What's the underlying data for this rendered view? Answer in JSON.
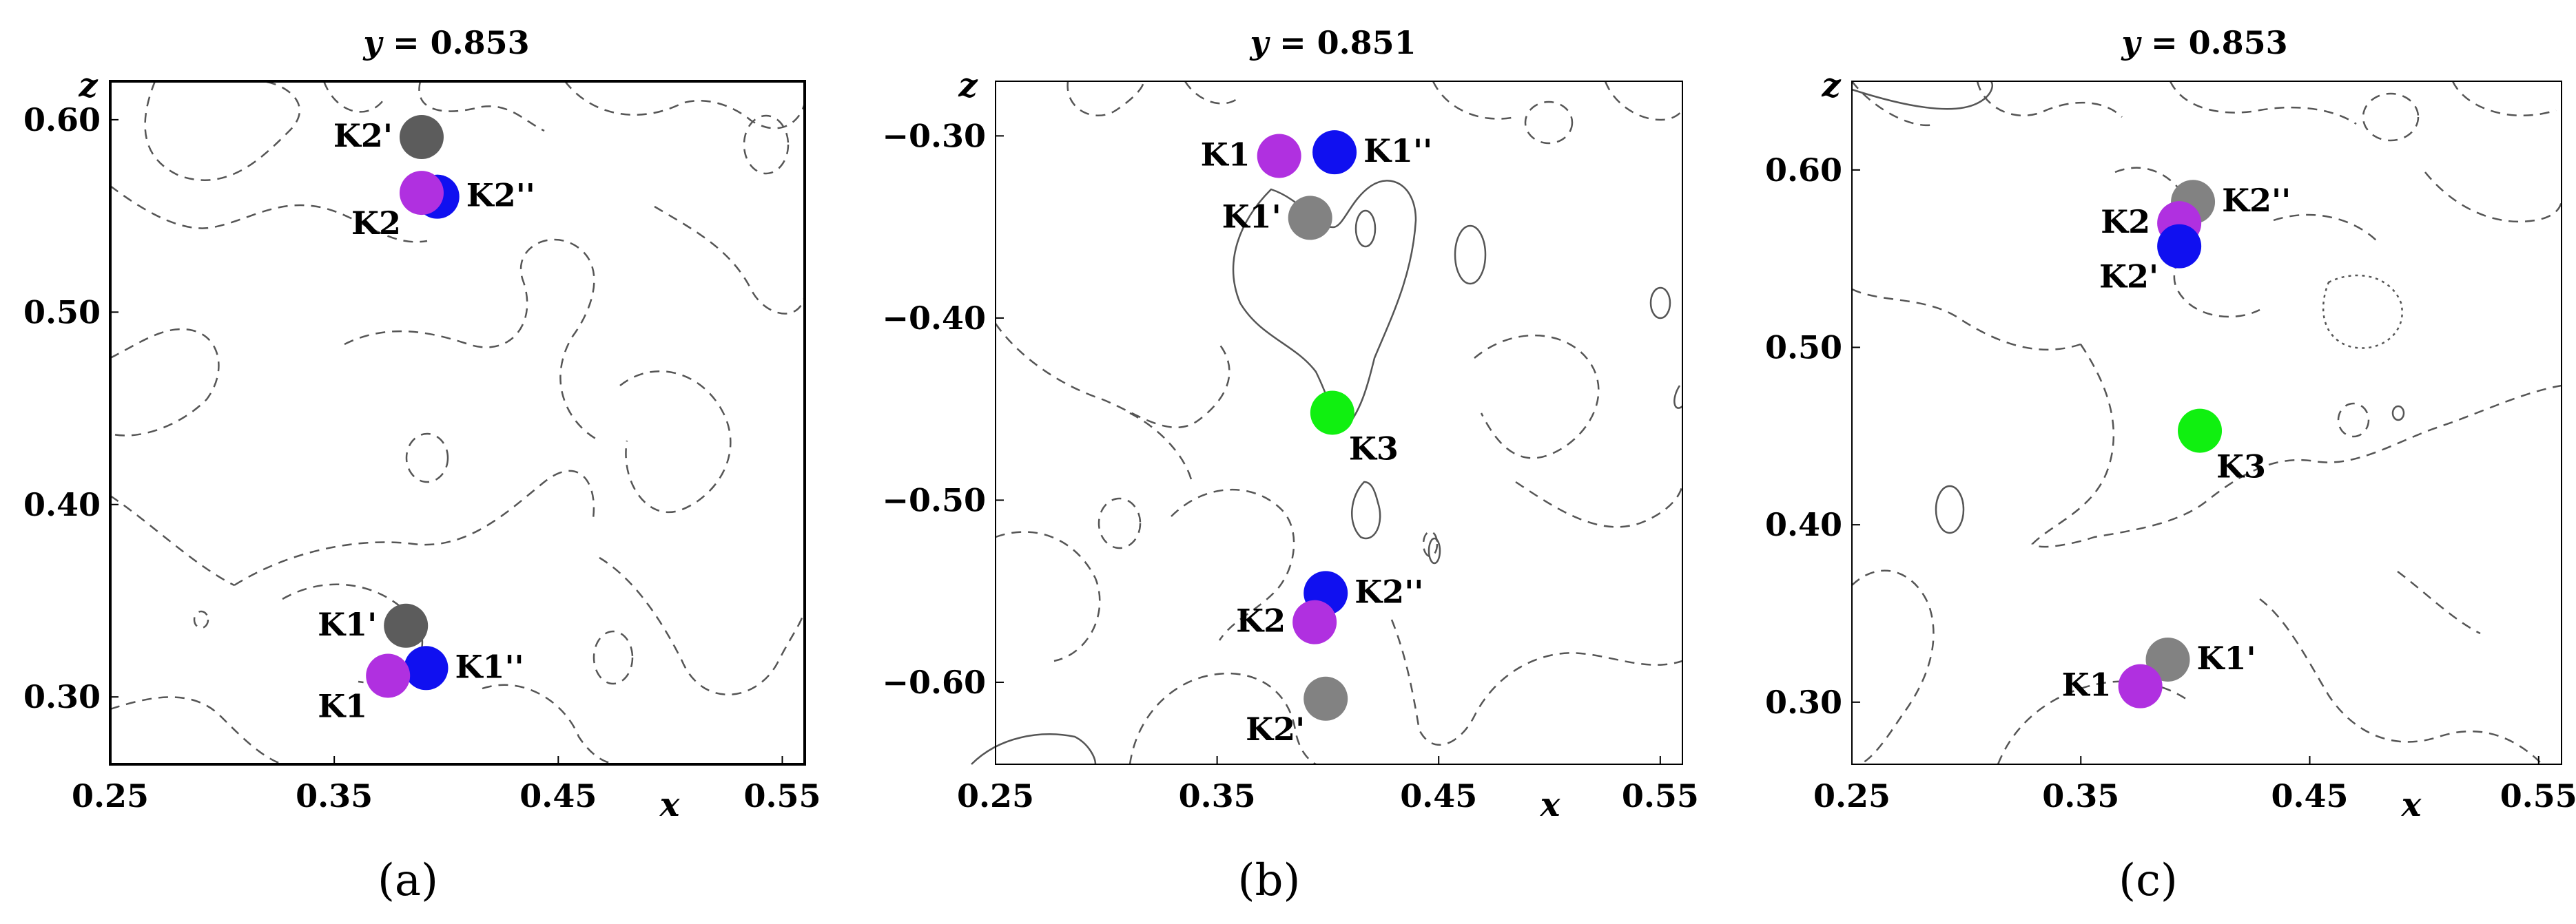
{
  "colors": {
    "magenta": "#b030e0",
    "blue": "#1010f0",
    "dark_gray": "#5c5c5c",
    "gray": "#828282",
    "green": "#10f010"
  },
  "chart_data": [
    {
      "type": "scatter",
      "title": "y = 0.853",
      "title_var": "y",
      "title_value": "= 0.853",
      "caption": "(a)",
      "xlabel": "x",
      "ylabel": "z",
      "xlim": [
        0.25,
        0.56
      ],
      "ylim": [
        0.265,
        0.62
      ],
      "xticks": [
        0.25,
        0.35,
        0.45,
        0.55
      ],
      "xtick_labels": [
        "0.25",
        "0.35",
        "0.45",
        "0.55"
      ],
      "yticks": [
        0.3,
        0.4,
        0.5,
        0.6
      ],
      "ytick_labels": [
        "0.30",
        "0.40",
        "0.50",
        "0.60"
      ],
      "grid": false,
      "points": [
        {
          "label": "K2'",
          "x": 0.389,
          "z": 0.591,
          "color": "dark_gray",
          "label_pos": "left"
        },
        {
          "label": "K2''",
          "x": 0.396,
          "z": 0.56,
          "color": "blue",
          "label_pos": "right"
        },
        {
          "label": "K2",
          "x": 0.389,
          "z": 0.562,
          "color": "magenta",
          "label_pos": "below-left"
        },
        {
          "label": "K1'",
          "x": 0.382,
          "z": 0.337,
          "color": "dark_gray",
          "label_pos": "left"
        },
        {
          "label": "K1''",
          "x": 0.391,
          "z": 0.315,
          "color": "blue",
          "label_pos": "right"
        },
        {
          "label": "K1",
          "x": 0.374,
          "z": 0.311,
          "color": "magenta",
          "label_pos": "below-left"
        }
      ]
    },
    {
      "type": "scatter",
      "title": "y = 0.851",
      "title_var": "y",
      "title_value": "= 0.851",
      "caption": "(b)",
      "xlabel": "x",
      "ylabel": "z",
      "xlim": [
        0.25,
        0.56
      ],
      "ylim": [
        -0.645,
        -0.27
      ],
      "xticks": [
        0.25,
        0.35,
        0.45,
        0.55
      ],
      "xtick_labels": [
        "0.25",
        "0.35",
        "0.45",
        "0.55"
      ],
      "yticks": [
        -0.3,
        -0.4,
        -0.5,
        -0.6
      ],
      "ytick_labels": [
        "−0.30",
        "−0.40",
        "−0.50",
        "−0.60"
      ],
      "grid": false,
      "points": [
        {
          "label": "K1",
          "x": 0.378,
          "z": -0.311,
          "color": "magenta",
          "label_pos": "left"
        },
        {
          "label": "K1''",
          "x": 0.403,
          "z": -0.309,
          "color": "blue",
          "label_pos": "right"
        },
        {
          "label": "K1'",
          "x": 0.392,
          "z": -0.345,
          "color": "gray",
          "label_pos": "left"
        },
        {
          "label": "K3",
          "x": 0.402,
          "z": -0.452,
          "color": "green",
          "label_pos": "below-right"
        },
        {
          "label": "K2''",
          "x": 0.399,
          "z": -0.551,
          "color": "blue",
          "label_pos": "right"
        },
        {
          "label": "K2",
          "x": 0.394,
          "z": -0.567,
          "color": "magenta",
          "label_pos": "left"
        },
        {
          "label": "K2'",
          "x": 0.399,
          "z": -0.609,
          "color": "gray",
          "label_pos": "below-left"
        }
      ]
    },
    {
      "type": "scatter",
      "title": "y = 0.853",
      "title_var": "y",
      "title_value": "= 0.853",
      "caption": "(c)",
      "xlabel": "x",
      "ylabel": "z",
      "xlim": [
        0.25,
        0.56
      ],
      "ylim": [
        0.265,
        0.65
      ],
      "xticks": [
        0.25,
        0.35,
        0.45,
        0.55
      ],
      "xtick_labels": [
        "0.25",
        "0.35",
        "0.45",
        "0.55"
      ],
      "yticks": [
        0.3,
        0.4,
        0.5,
        0.6
      ],
      "ytick_labels": [
        "0.30",
        "0.40",
        "0.50",
        "0.60"
      ],
      "grid": false,
      "points": [
        {
          "label": "K2''",
          "x": 0.399,
          "z": 0.582,
          "color": "gray",
          "label_pos": "right"
        },
        {
          "label": "K2",
          "x": 0.393,
          "z": 0.57,
          "color": "magenta",
          "label_pos": "left"
        },
        {
          "label": "K2'",
          "x": 0.393,
          "z": 0.557,
          "color": "blue",
          "label_pos": "below-left"
        },
        {
          "label": "K3",
          "x": 0.402,
          "z": 0.453,
          "color": "green",
          "label_pos": "below-right"
        },
        {
          "label": "K1'",
          "x": 0.388,
          "z": 0.324,
          "color": "gray",
          "label_pos": "right"
        },
        {
          "label": "K1",
          "x": 0.376,
          "z": 0.309,
          "color": "magenta",
          "label_pos": "left"
        }
      ]
    }
  ]
}
